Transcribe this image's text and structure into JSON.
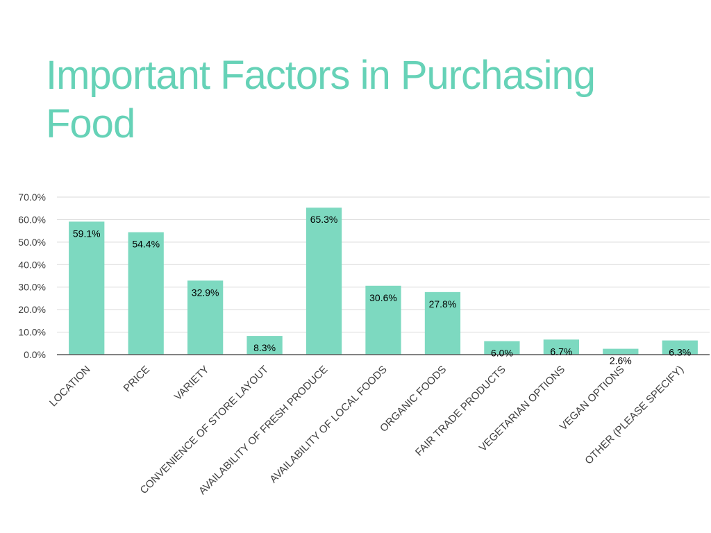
{
  "slide": {
    "title": "Important Factors in Purchasing Food"
  },
  "colors": {
    "title": "#66d2b7",
    "bar": "#7dd9c0",
    "axis": "#595959",
    "gridline": "#d9d9d9",
    "tick_label": "#404040",
    "data_label": "#000000"
  },
  "chart_data": {
    "type": "bar",
    "title": "",
    "xlabel": "",
    "ylabel": "",
    "categories": [
      "LOCATION",
      "PRICE",
      "VARIETY",
      "CONVENIENCE OF STORE LAYOUT",
      "AVAILABILITY OF FRESH PRODUCE",
      "AVAILABILITY OF LOCAL FOODS",
      "ORGANIC FOODS",
      "FAIR TRADE PRODUCTS",
      "VEGETARIAN OPTIONS",
      "VEGAN OPTIONS",
      "OTHER (PLEASE SPECIFY)"
    ],
    "values": [
      59.1,
      54.4,
      32.9,
      8.3,
      65.3,
      30.6,
      27.8,
      6.0,
      6.7,
      2.6,
      6.3
    ],
    "data_labels": [
      "59.1%",
      "54.4%",
      "32.9%",
      "8.3%",
      "65.3%",
      "30.6%",
      "27.8%",
      "6.0%",
      "6.7%",
      "2.6%",
      "6.3%"
    ],
    "y_ticks": [
      0,
      10,
      20,
      30,
      40,
      50,
      60,
      70
    ],
    "y_tick_labels": [
      "0.0%",
      "10.0%",
      "20.0%",
      "30.0%",
      "40.0%",
      "50.0%",
      "60.0%",
      "70.0%"
    ],
    "ylim": [
      0,
      70
    ],
    "grid": true,
    "legend": "none"
  }
}
